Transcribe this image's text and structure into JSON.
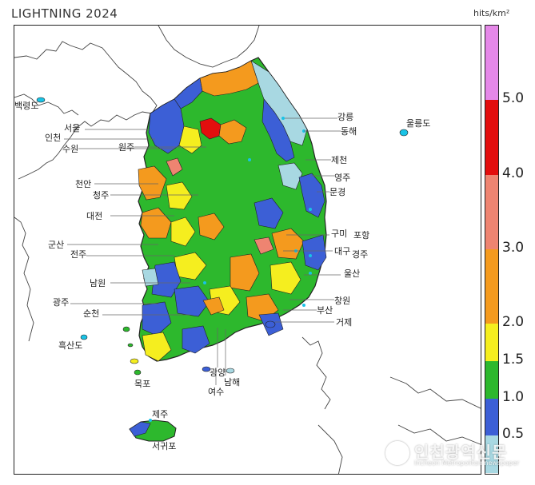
{
  "title": "LIGHTNING 2024",
  "unit": "hits/km²",
  "legend": {
    "ticks": [
      "0.5",
      "1.0",
      "1.5",
      "2.0",
      "3.0",
      "4.0",
      "5.0"
    ],
    "bands": [
      {
        "from": 0.0,
        "to": 0.5,
        "color": "#a8d8e2"
      },
      {
        "from": 0.5,
        "to": 1.0,
        "color": "#3c5fd6"
      },
      {
        "from": 1.0,
        "to": 1.5,
        "color": "#2db82d"
      },
      {
        "from": 1.5,
        "to": 2.0,
        "color": "#f5ee1f"
      },
      {
        "from": 2.0,
        "to": 3.0,
        "color": "#f49a1e"
      },
      {
        "from": 3.0,
        "to": 4.0,
        "color": "#ee8471"
      },
      {
        "from": 4.0,
        "to": 5.0,
        "color": "#e30e0e"
      },
      {
        "from": 5.0,
        "to": 6.0,
        "color": "#e588e8"
      }
    ]
  },
  "cities": [
    "백령도",
    "서울",
    "인천",
    "수원",
    "원주",
    "강릉",
    "동해",
    "울릉도",
    "제천",
    "영주",
    "문경",
    "천안",
    "청주",
    "대전",
    "구미",
    "포항",
    "군산",
    "대구",
    "경주",
    "전주",
    "울산",
    "남원",
    "창원",
    "광주",
    "순천",
    "부산",
    "거제",
    "흑산도",
    "광양",
    "남해",
    "여수",
    "목포",
    "제주",
    "서귀포"
  ],
  "watermark": {
    "name": "인천광역신문",
    "sub": "Incheon Metropolitan newspaper"
  }
}
